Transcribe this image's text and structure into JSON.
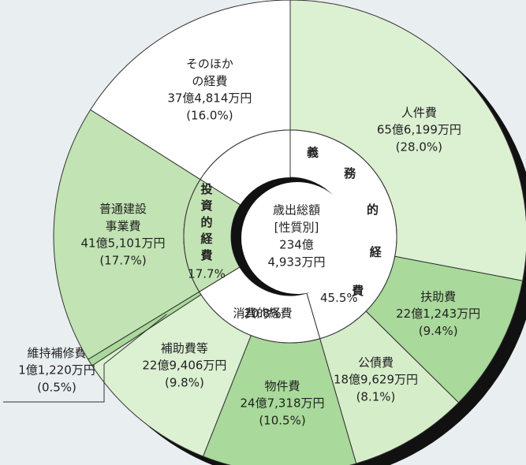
{
  "chart_data": {
    "type": "donut",
    "center_lines": [
      "歳出総額",
      "[性質別]",
      "234億",
      "4,933万円"
    ],
    "outer": {
      "labels": [
        "人件費",
        "扶助費",
        "公債費",
        "物件費",
        "補助費等",
        "維持補修費",
        "普通建設事業費",
        "そのほかの経費"
      ],
      "amounts": [
        "65億6,199万円",
        "22億1,243万円",
        "18億9,629万円",
        "24億7,318万円",
        "22億9,406万円",
        "1億1,220万円",
        "41億5,101万円",
        "37億4,814万円"
      ],
      "values": [
        28.0,
        9.4,
        8.1,
        10.5,
        9.8,
        0.5,
        17.7,
        16.0
      ],
      "value_labels": [
        "(28.0%)",
        "(9.4%)",
        "(8.1%)",
        "(10.5%)",
        "(9.8%)",
        "(0.5%)",
        "(17.7%)",
        "(16.0%)"
      ],
      "colors": [
        "#dcf0d2",
        "#a9d99b",
        "#d6edca",
        "#a9d99b",
        "#dcf0d2",
        "#a9d99b",
        "#c2e3b3",
        "#ffffff"
      ]
    },
    "inner": {
      "labels": [
        "義務的経費",
        "消費的経費",
        "投資的経費"
      ],
      "values": [
        45.5,
        20.8,
        17.7
      ],
      "value_labels": [
        "45.5%",
        "20.8%",
        "17.7%"
      ],
      "colors": [
        "#ffffff",
        "#ffffff",
        "#c2e3b3"
      ]
    }
  }
}
